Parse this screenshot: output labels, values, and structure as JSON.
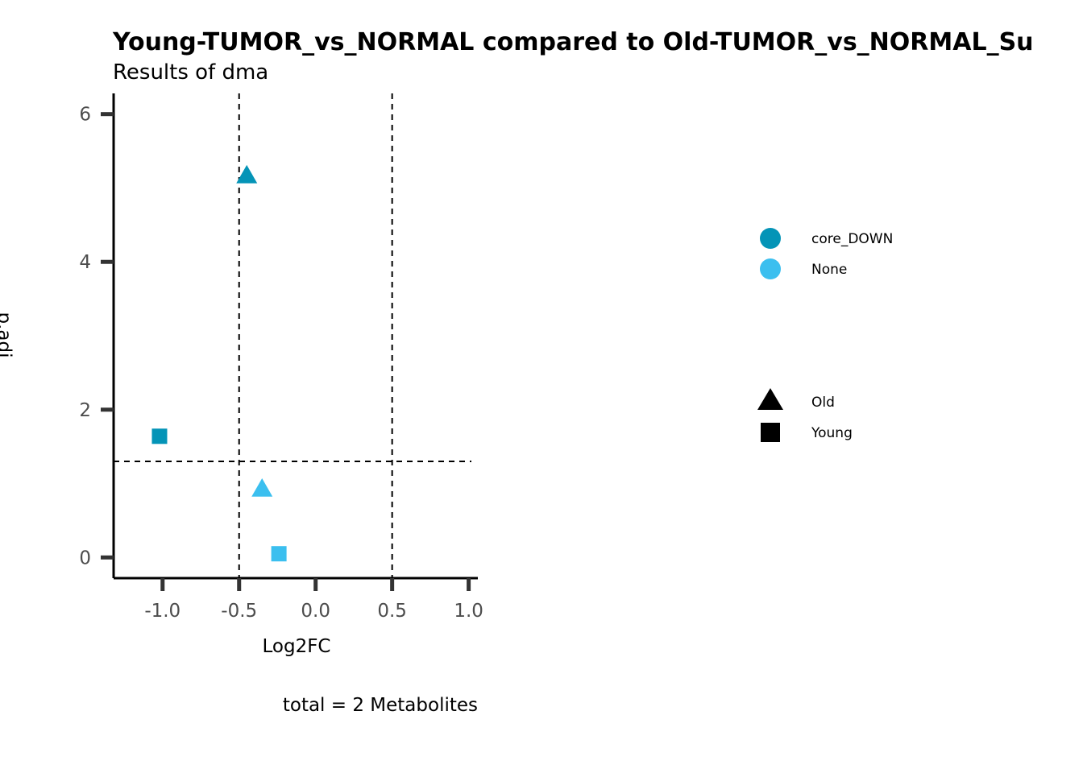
{
  "chart_data": {
    "type": "scatter",
    "title": "Young-TUMOR_vs_NORMAL compared to Old-TUMOR_vs_NORMAL_Su",
    "subtitle": "Results of dma",
    "xlabel": "Log2FC",
    "ylabel": "p.adj",
    "caption": "total = 2 Metabolites",
    "xlim": [
      -1.32,
      1.06
    ],
    "ylim": [
      -0.28,
      6.28
    ],
    "x_ticks": [
      -1.0,
      -0.5,
      0.0,
      0.5,
      1.0
    ],
    "x_tick_labels": [
      "-1.0",
      "-0.5",
      "0.0",
      "0.5",
      "1.0"
    ],
    "y_ticks": [
      0,
      2,
      4,
      6
    ],
    "y_tick_labels": [
      "0",
      "2",
      "4",
      "6"
    ],
    "grid": false,
    "threshold_lines": {
      "vertical": [
        -0.5,
        0.5
      ],
      "horizontal": [
        1.3
      ]
    },
    "colors": {
      "core_DOWN": "#0494B7",
      "None": "#3BBFEF"
    },
    "points": [
      {
        "x": -0.45,
        "y": 5.17,
        "group": "core_DOWN",
        "shape": "Old"
      },
      {
        "x": -1.02,
        "y": 1.64,
        "group": "core_DOWN",
        "shape": "Young"
      },
      {
        "x": -0.35,
        "y": 0.93,
        "group": "None",
        "shape": "Old"
      },
      {
        "x": -0.24,
        "y": 0.05,
        "group": "None",
        "shape": "Young"
      }
    ],
    "legend": {
      "placement": "right",
      "color_entries": [
        {
          "label": "core_DOWN",
          "color": "#0494B7"
        },
        {
          "label": "None",
          "color": "#3BBFEF"
        }
      ],
      "shape_entries": [
        {
          "label": "Old",
          "shape": "triangle"
        },
        {
          "label": "Young",
          "shape": "square"
        }
      ]
    }
  }
}
